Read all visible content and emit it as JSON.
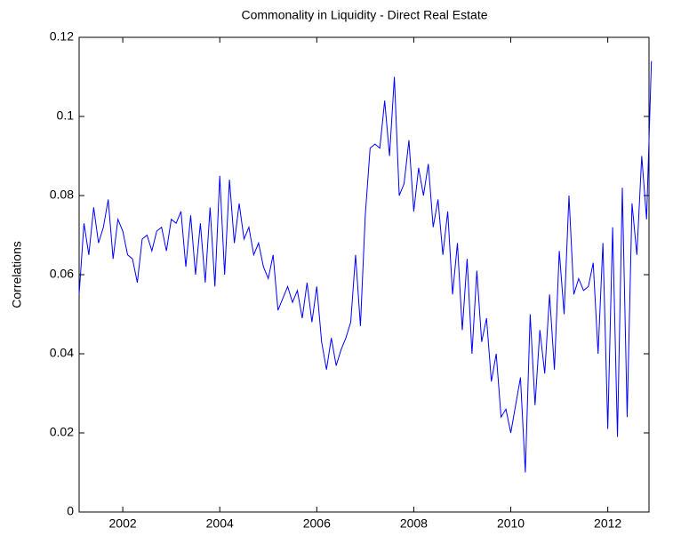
{
  "chart_data": {
    "type": "line",
    "title": "Commonality in Liquidity - Direct Real Estate",
    "y_label": "Correlations",
    "x": [
      2001.1,
      2001.2,
      2001.3,
      2001.4,
      2001.5,
      2001.6,
      2001.7,
      2001.8,
      2001.9,
      2002.0,
      2002.1,
      2002.2,
      2002.3,
      2002.4,
      2002.5,
      2002.6,
      2002.7,
      2002.8,
      2002.9,
      2003.0,
      2003.1,
      2003.2,
      2003.3,
      2003.4,
      2003.5,
      2003.6,
      2003.7,
      2003.8,
      2003.9,
      2004.0,
      2004.1,
      2004.2,
      2004.3,
      2004.4,
      2004.5,
      2004.6,
      2004.7,
      2004.8,
      2004.9,
      2005.0,
      2005.1,
      2005.2,
      2005.3,
      2005.4,
      2005.5,
      2005.6,
      2005.7,
      2005.8,
      2005.9,
      2006.0,
      2006.1,
      2006.2,
      2006.3,
      2006.4,
      2006.5,
      2006.6,
      2006.7,
      2006.8,
      2006.9,
      2007.0,
      2007.1,
      2007.2,
      2007.3,
      2007.4,
      2007.5,
      2007.6,
      2007.7,
      2007.8,
      2007.9,
      2008.0,
      2008.1,
      2008.2,
      2008.3,
      2008.4,
      2008.5,
      2008.6,
      2008.7,
      2008.8,
      2008.9,
      2009.0,
      2009.1,
      2009.2,
      2009.3,
      2009.4,
      2009.5,
      2009.6,
      2009.7,
      2009.8,
      2009.9,
      2010.0,
      2010.1,
      2010.2,
      2010.3,
      2010.4,
      2010.5,
      2010.6,
      2010.7,
      2010.8,
      2010.9,
      2011.0,
      2011.1,
      2011.2,
      2011.3,
      2011.4,
      2011.5,
      2011.6,
      2011.7,
      2011.8,
      2011.9,
      2012.0,
      2012.1,
      2012.2,
      2012.3,
      2012.4,
      2012.5,
      2012.6,
      2012.7,
      2012.8,
      2012.9
    ],
    "series": [
      {
        "name": "Correlations",
        "color": "#0000ff",
        "values": [
          0.055,
          0.073,
          0.065,
          0.077,
          0.068,
          0.072,
          0.079,
          0.064,
          0.074,
          0.071,
          0.065,
          0.064,
          0.058,
          0.069,
          0.07,
          0.066,
          0.071,
          0.072,
          0.066,
          0.074,
          0.073,
          0.076,
          0.062,
          0.075,
          0.06,
          0.073,
          0.058,
          0.077,
          0.057,
          0.085,
          0.06,
          0.084,
          0.068,
          0.078,
          0.069,
          0.072,
          0.065,
          0.068,
          0.062,
          0.059,
          0.065,
          0.051,
          0.054,
          0.057,
          0.053,
          0.056,
          0.049,
          0.058,
          0.048,
          0.057,
          0.043,
          0.036,
          0.044,
          0.037,
          0.041,
          0.044,
          0.048,
          0.065,
          0.047,
          0.075,
          0.092,
          0.093,
          0.092,
          0.104,
          0.09,
          0.11,
          0.08,
          0.083,
          0.094,
          0.076,
          0.087,
          0.08,
          0.088,
          0.072,
          0.079,
          0.065,
          0.076,
          0.055,
          0.068,
          0.046,
          0.064,
          0.04,
          0.061,
          0.043,
          0.049,
          0.033,
          0.04,
          0.024,
          0.026,
          0.02,
          0.027,
          0.034,
          0.01,
          0.05,
          0.027,
          0.046,
          0.035,
          0.055,
          0.036,
          0.066,
          0.05,
          0.08,
          0.055,
          0.059,
          0.056,
          0.057,
          0.063,
          0.04,
          0.068,
          0.021,
          0.072,
          0.019,
          0.082,
          0.024,
          0.078,
          0.065,
          0.09,
          0.074,
          0.114
        ]
      }
    ],
    "xlim": [
      2001.1,
      2012.85
    ],
    "xticks": [
      2002,
      2004,
      2006,
      2008,
      2010,
      2012
    ],
    "ylim": [
      0,
      0.12
    ],
    "yticks": [
      0,
      0.02,
      0.04,
      0.06,
      0.08,
      0.1,
      0.12
    ]
  }
}
